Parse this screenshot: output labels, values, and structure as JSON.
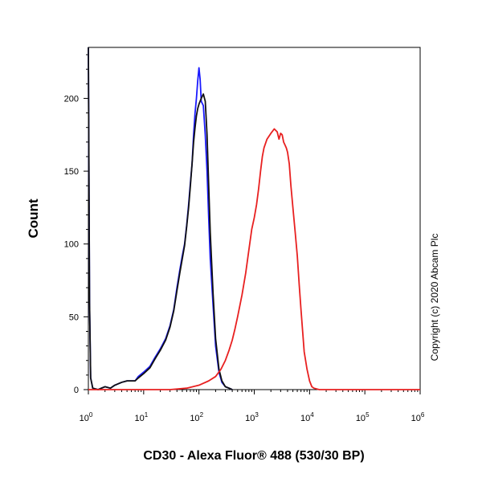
{
  "chart_data": {
    "type": "line",
    "xlabel": "CD30 -  Alexa Fluor® 488 (530/30 BP)",
    "ylabel": "Count",
    "xscale": "log",
    "xlim": [
      1,
      1000000
    ],
    "ylim": [
      0,
      235
    ],
    "x_ticks": [
      {
        "value": 1,
        "base": "10",
        "exp": "0"
      },
      {
        "value": 10,
        "base": "10",
        "exp": "1"
      },
      {
        "value": 100,
        "base": "10",
        "exp": "2"
      },
      {
        "value": 1000,
        "base": "10",
        "exp": "3"
      },
      {
        "value": 10000,
        "base": "10",
        "exp": "4"
      },
      {
        "value": 100000,
        "base": "10",
        "exp": "5"
      },
      {
        "value": 1000000,
        "base": "10",
        "exp": "6"
      }
    ],
    "y_ticks": [
      0,
      50,
      100,
      150,
      200
    ],
    "grid": false,
    "legend": "none",
    "annotation": "Copyright (c) 2020 Abcam Plc",
    "series": [
      {
        "color": "#1a1aff",
        "points": [
          [
            1,
            235
          ],
          [
            1.05,
            60
          ],
          [
            1.1,
            8
          ],
          [
            1.2,
            1
          ],
          [
            1.5,
            0
          ],
          [
            2,
            2
          ],
          [
            2.5,
            1
          ],
          [
            3,
            3
          ],
          [
            4,
            5
          ],
          [
            5,
            6
          ],
          [
            6,
            6
          ],
          [
            7,
            6
          ],
          [
            8,
            9
          ],
          [
            10,
            12
          ],
          [
            13,
            16
          ],
          [
            16,
            22
          ],
          [
            20,
            28
          ],
          [
            25,
            35
          ],
          [
            30,
            44
          ],
          [
            35,
            55
          ],
          [
            40,
            70
          ],
          [
            45,
            82
          ],
          [
            50,
            92
          ],
          [
            55,
            100
          ],
          [
            60,
            113
          ],
          [
            65,
            127
          ],
          [
            70,
            142
          ],
          [
            75,
            155
          ],
          [
            80,
            175
          ],
          [
            85,
            190
          ],
          [
            90,
            200
          ],
          [
            95,
            212
          ],
          [
            100,
            221
          ],
          [
            105,
            213
          ],
          [
            110,
            198
          ],
          [
            120,
            195
          ],
          [
            130,
            175
          ],
          [
            140,
            150
          ],
          [
            150,
            118
          ],
          [
            160,
            90
          ],
          [
            180,
            58
          ],
          [
            200,
            30
          ],
          [
            230,
            12
          ],
          [
            260,
            5
          ],
          [
            300,
            2
          ],
          [
            350,
            1
          ],
          [
            400,
            0
          ]
        ]
      },
      {
        "color": "#111111",
        "points": [
          [
            1,
            235
          ],
          [
            1.05,
            60
          ],
          [
            1.1,
            8
          ],
          [
            1.2,
            1
          ],
          [
            1.5,
            0
          ],
          [
            2,
            2
          ],
          [
            2.5,
            1
          ],
          [
            3,
            3
          ],
          [
            4,
            5
          ],
          [
            5,
            6
          ],
          [
            6,
            6
          ],
          [
            7,
            6
          ],
          [
            8,
            8
          ],
          [
            10,
            11
          ],
          [
            13,
            15
          ],
          [
            16,
            21
          ],
          [
            20,
            27
          ],
          [
            25,
            34
          ],
          [
            30,
            43
          ],
          [
            35,
            54
          ],
          [
            40,
            68
          ],
          [
            45,
            80
          ],
          [
            50,
            90
          ],
          [
            55,
            99
          ],
          [
            60,
            112
          ],
          [
            65,
            125
          ],
          [
            70,
            140
          ],
          [
            75,
            155
          ],
          [
            80,
            170
          ],
          [
            85,
            180
          ],
          [
            90,
            188
          ],
          [
            95,
            193
          ],
          [
            100,
            196
          ],
          [
            110,
            200
          ],
          [
            120,
            203
          ],
          [
            130,
            198
          ],
          [
            140,
            175
          ],
          [
            150,
            140
          ],
          [
            160,
            108
          ],
          [
            180,
            66
          ],
          [
            200,
            35
          ],
          [
            230,
            14
          ],
          [
            260,
            6
          ],
          [
            300,
            2
          ],
          [
            350,
            1
          ],
          [
            400,
            0
          ]
        ]
      },
      {
        "color": "#e82020",
        "points": [
          [
            1,
            0
          ],
          [
            10,
            0
          ],
          [
            30,
            0
          ],
          [
            60,
            1
          ],
          [
            100,
            3
          ],
          [
            150,
            6
          ],
          [
            200,
            9
          ],
          [
            250,
            14
          ],
          [
            300,
            20
          ],
          [
            350,
            27
          ],
          [
            400,
            34
          ],
          [
            450,
            42
          ],
          [
            500,
            50
          ],
          [
            600,
            65
          ],
          [
            700,
            80
          ],
          [
            800,
            96
          ],
          [
            900,
            110
          ],
          [
            1000,
            118
          ],
          [
            1100,
            127
          ],
          [
            1200,
            138
          ],
          [
            1300,
            150
          ],
          [
            1400,
            160
          ],
          [
            1500,
            166
          ],
          [
            1700,
            172
          ],
          [
            2000,
            176
          ],
          [
            2300,
            179
          ],
          [
            2600,
            177
          ],
          [
            2800,
            172
          ],
          [
            3000,
            176
          ],
          [
            3200,
            175
          ],
          [
            3400,
            170
          ],
          [
            3600,
            168
          ],
          [
            3800,
            166
          ],
          [
            4000,
            163
          ],
          [
            4300,
            155
          ],
          [
            4600,
            140
          ],
          [
            5000,
            125
          ],
          [
            5500,
            108
          ],
          [
            6000,
            92
          ],
          [
            6500,
            72
          ],
          [
            7000,
            55
          ],
          [
            7500,
            40
          ],
          [
            8000,
            26
          ],
          [
            9000,
            14
          ],
          [
            10000,
            6
          ],
          [
            11000,
            2
          ],
          [
            12000,
            1
          ],
          [
            15000,
            0
          ],
          [
            1000000,
            0
          ]
        ]
      }
    ]
  }
}
